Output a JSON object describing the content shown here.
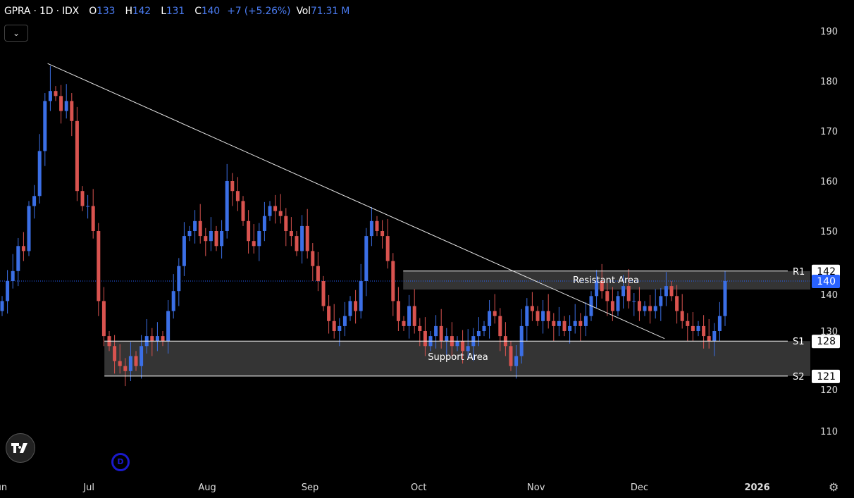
{
  "header": {
    "symbol": "GPRA",
    "sep1": "·",
    "interval": "1D",
    "sep2": "·",
    "exchange": "IDX",
    "open_label": "O",
    "open": "133",
    "high_label": "H",
    "high": "142",
    "low_label": "L",
    "low": "131",
    "close_label": "C",
    "close": "140",
    "change": "+7 (+5.26%)",
    "vol_label": "Vol",
    "vol": "71.31 M",
    "collapse_icon": "chevron-down-icon"
  },
  "markers": {
    "dividend": "D",
    "logo": "TV"
  },
  "colors": {
    "up": "#3b6fe6",
    "down": "#d9534f",
    "background": "#000000",
    "zone": "#3a3a3a",
    "last_price": "#2962ff"
  },
  "chart_data": {
    "type": "candlestick",
    "title": "GPRA · 1D · IDX",
    "ylim": [
      110,
      190
    ],
    "yticks": [
      110,
      120,
      130,
      140,
      150,
      160,
      170,
      180,
      190
    ],
    "xticks": [
      {
        "label": "Jun",
        "index": -0.4
      },
      {
        "label": "Jul",
        "index": 16.2
      },
      {
        "label": "Aug",
        "index": 38.3
      },
      {
        "label": "Sep",
        "index": 57.5
      },
      {
        "label": "Oct",
        "index": 77.8
      },
      {
        "label": "Nov",
        "index": 99.7
      },
      {
        "label": "Dec",
        "index": 119
      },
      {
        "label": "2026",
        "index": 141
      }
    ],
    "closes": [
      136,
      140,
      142,
      147,
      146,
      155,
      157,
      166,
      176,
      178,
      177,
      174,
      176,
      172,
      158,
      155,
      155,
      150,
      136,
      129,
      127,
      124,
      123,
      122,
      125,
      123,
      127,
      129,
      128,
      129,
      128,
      134,
      138,
      143,
      149,
      150,
      152,
      149,
      148,
      150,
      147,
      150,
      160,
      158,
      156,
      152,
      148,
      147,
      150,
      153,
      155,
      154,
      153,
      150,
      149,
      146,
      151,
      146,
      143,
      140,
      135,
      132,
      130,
      131,
      133,
      136,
      134,
      140,
      149,
      152,
      150,
      149,
      144,
      136,
      132,
      131,
      135,
      131,
      130,
      127,
      129,
      131,
      128,
      129,
      127,
      128,
      126,
      127,
      129,
      130,
      131,
      134,
      133,
      129,
      127,
      123,
      125,
      131,
      135,
      134,
      132,
      134,
      132,
      131,
      132,
      130,
      131,
      132,
      131,
      133,
      137,
      140,
      138,
      136,
      134,
      137,
      139,
      136,
      136,
      134,
      135,
      134,
      135,
      137,
      139,
      137,
      134,
      132,
      131,
      130,
      131,
      129,
      128,
      130,
      133,
      140
    ],
    "first_open": 134,
    "last_candle": {
      "open": 133,
      "high": 142,
      "low": 131,
      "close": 140
    },
    "annotations": {
      "trendline": {
        "from": {
          "index": 8.5,
          "price": 183.5
        },
        "to": {
          "index": 123.7,
          "price": 128.5
        }
      },
      "resistant_area": {
        "label": "Resistant Area",
        "from_index": 74.9,
        "top": 142,
        "bottom": 138.3
      },
      "support_area": {
        "label": "Support Area",
        "from_index": 19.1,
        "top": 128,
        "bottom": 121
      },
      "levels": [
        {
          "name": "R1",
          "price": 142,
          "from_index": 74.9
        },
        {
          "name": "S1",
          "price": 128,
          "from_index": 19.1
        },
        {
          "name": "S2",
          "price": 121,
          "from_index": 19.1
        }
      ]
    },
    "price_badges": [
      {
        "label": "142",
        "price": 142,
        "style": "white"
      },
      {
        "label": "140",
        "price": 140,
        "style": "blue"
      },
      {
        "label": "128",
        "price": 128,
        "style": "white"
      },
      {
        "label": "121",
        "price": 121,
        "style": "white"
      }
    ]
  }
}
